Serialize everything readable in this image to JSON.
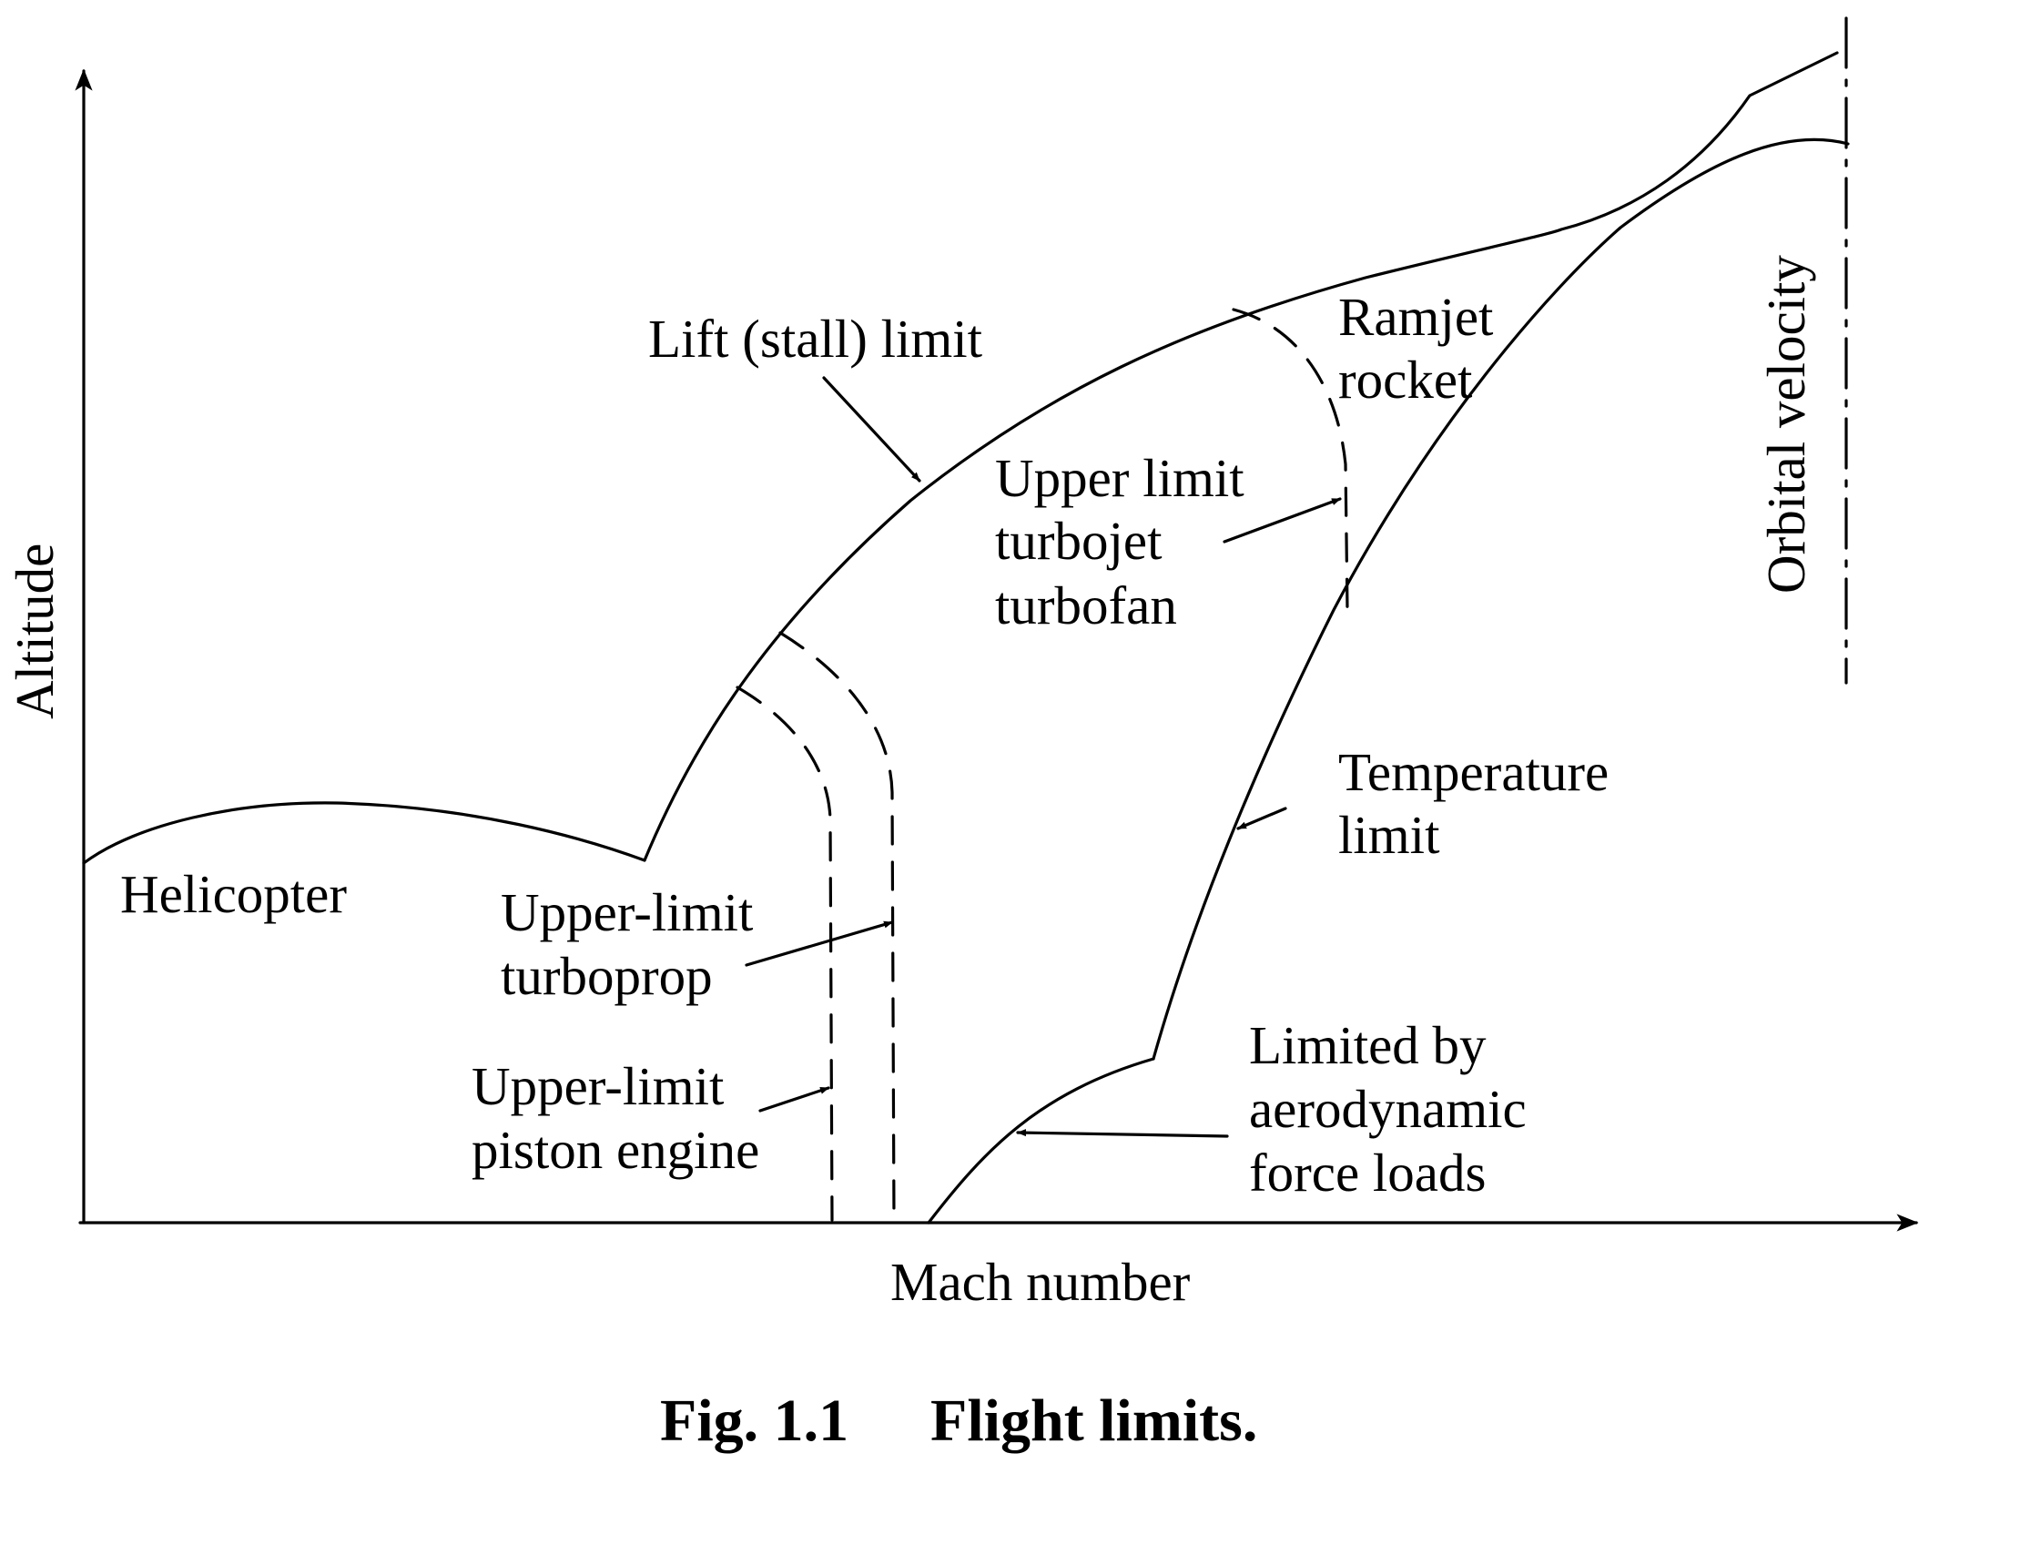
{
  "diagram": {
    "x_axis_label": "Mach number",
    "y_axis_label": "Altitude",
    "caption_number": "Fig. 1.1",
    "caption_title": "Flight limits.",
    "labels": {
      "lift_stall_limit": "Lift (stall) limit",
      "ramjet": [
        "Ramjet",
        "rocket"
      ],
      "upper_limit_turbojet": [
        "Upper limit",
        "turbojet",
        "turbofan"
      ],
      "orbital_velocity": "Orbital velocity",
      "temperature_limit": [
        "Temperature",
        "limit"
      ],
      "helicopter": "Helicopter",
      "upper_limit_turboprop": [
        "Upper-limit",
        "turboprop"
      ],
      "upper_limit_piston": [
        "Upper-limit",
        "piston engine"
      ],
      "aerodynamic_loads": [
        "Limited by",
        "aerodynamic",
        "force loads"
      ]
    }
  }
}
